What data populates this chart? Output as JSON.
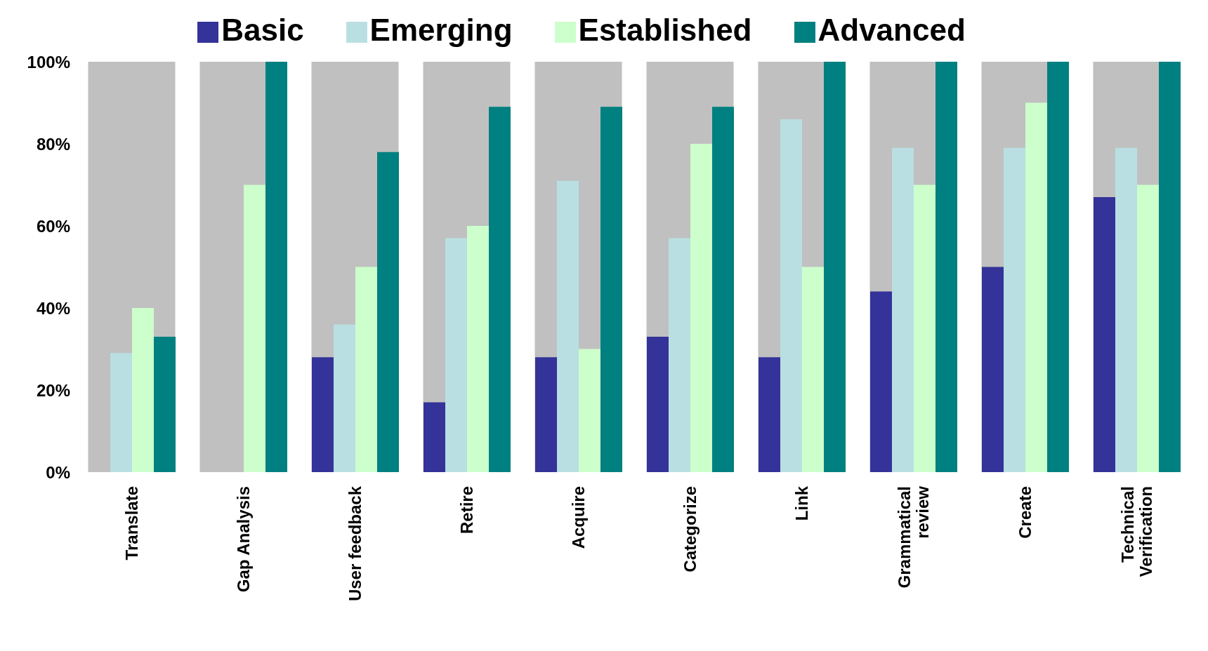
{
  "chart_data": {
    "type": "bar",
    "categories": [
      "Translate",
      "Gap Analysis",
      "User feedback",
      "Retire",
      "Acquire",
      "Categorize",
      "Link",
      "Grammatical review",
      "Create",
      "Technical Verification"
    ],
    "series": [
      {
        "name": "Basic",
        "color": "#333399",
        "values": [
          0,
          0,
          28,
          17,
          28,
          33,
          28,
          44,
          50,
          67
        ]
      },
      {
        "name": "Emerging",
        "color": "#b9dfe2",
        "values": [
          29,
          0,
          36,
          57,
          71,
          57,
          86,
          79,
          79,
          79
        ]
      },
      {
        "name": "Established",
        "color": "#ccffcc",
        "values": [
          40,
          70,
          50,
          60,
          30,
          80,
          50,
          70,
          90,
          70
        ]
      },
      {
        "name": "Advanced",
        "color": "#008080",
        "values": [
          33,
          100,
          78,
          89,
          89,
          89,
          100,
          100,
          100,
          100
        ]
      }
    ],
    "ylim": [
      0,
      100
    ],
    "yticks": [
      {
        "value": 0,
        "label": "0%"
      },
      {
        "value": 20,
        "label": "20%"
      },
      {
        "value": 40,
        "label": "40%"
      },
      {
        "value": 60,
        "label": "60%"
      },
      {
        "value": 80,
        "label": "80%"
      },
      {
        "value": 100,
        "label": "100%"
      }
    ],
    "bands": [
      {
        "axis": "x",
        "from": "Translate",
        "to": "Translate",
        "color": "#c0c0c0"
      },
      {
        "axis": "x",
        "from": "Gap Analysis",
        "to": "Gap Analysis",
        "color": "#c0c0c0"
      },
      {
        "axis": "x",
        "from": "User feedback",
        "to": "User feedback",
        "color": "#c0c0c0"
      },
      {
        "axis": "x",
        "from": "Retire",
        "to": "Retire",
        "color": "#c0c0c0"
      },
      {
        "axis": "x",
        "from": "Acquire",
        "to": "Acquire",
        "color": "#c0c0c0"
      },
      {
        "axis": "x",
        "from": "Categorize",
        "to": "Categorize",
        "color": "#c0c0c0"
      },
      {
        "axis": "x",
        "from": "Link",
        "to": "Link",
        "color": "#c0c0c0"
      },
      {
        "axis": "x",
        "from": "Grammatical review",
        "to": "Grammatical review",
        "color": "#c0c0c0"
      },
      {
        "axis": "x",
        "from": "Create",
        "to": "Create",
        "color": "#c0c0c0"
      },
      {
        "axis": "x",
        "from": "Technical Verification",
        "to": "Technical Verification",
        "color": "#c0c0c0"
      }
    ],
    "grid": false,
    "legend": "top"
  }
}
